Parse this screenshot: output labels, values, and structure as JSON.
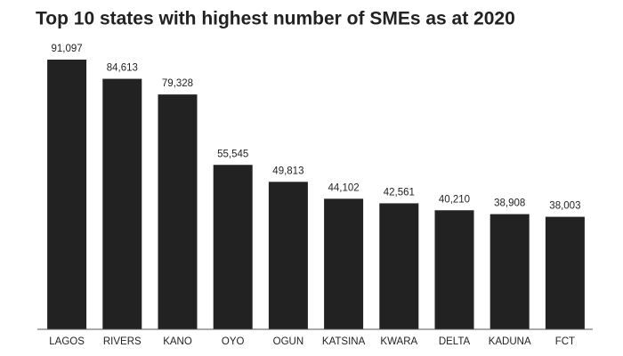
{
  "chart_data": {
    "type": "bar",
    "title": "Top 10 states with highest number of SMEs as at 2020",
    "categories": [
      "LAGOS",
      "RIVERS",
      "KANO",
      "OYO",
      "OGUN",
      "KATSINA",
      "KWARA",
      "DELTA",
      "KADUNA",
      "FCT"
    ],
    "values": [
      91097,
      84613,
      79328,
      55545,
      49813,
      44102,
      42561,
      40210,
      38908,
      38003
    ],
    "value_labels": [
      "91,097",
      "84,613",
      "79,328",
      "55,545",
      "49,813",
      "44,102",
      "42,561",
      "40,210",
      "38,908",
      "38,003"
    ],
    "color": "#222222"
  }
}
